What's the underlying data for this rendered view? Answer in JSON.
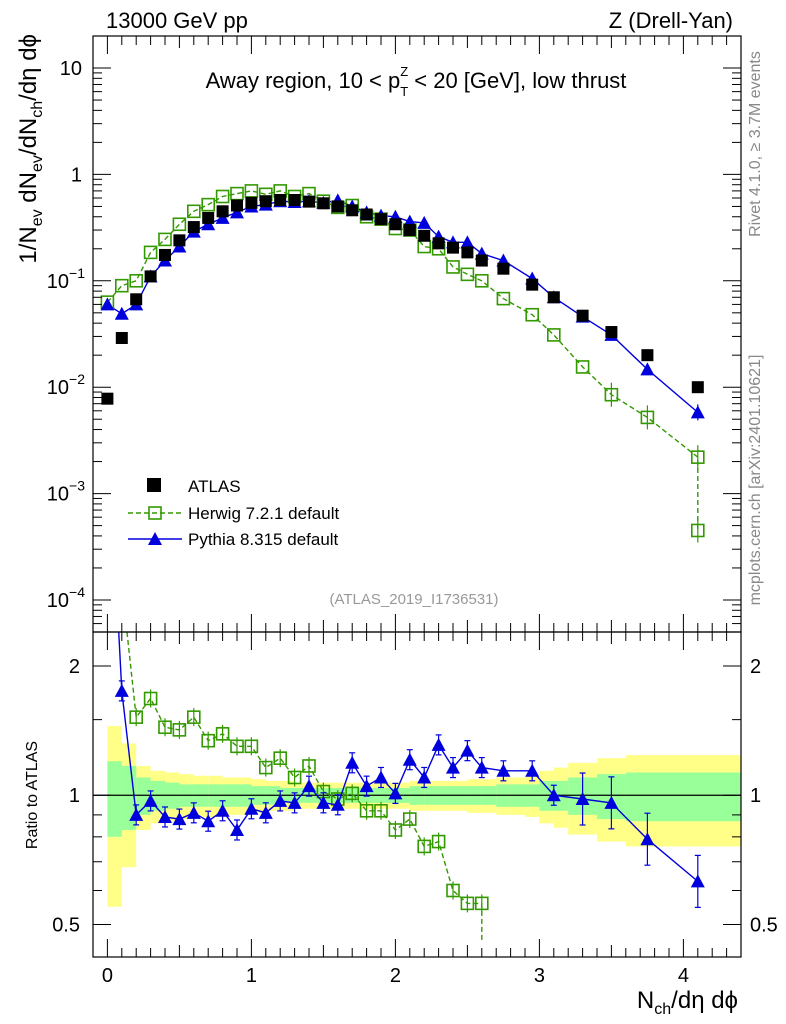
{
  "header": {
    "left": "13000 GeV pp",
    "right": "Z (Drell-Yan)"
  },
  "side_labels": {
    "rivet": "Rivet 4.1.0, ≥ 3.7M events",
    "mcplots": "mcplots.cern.ch [arXiv:2401.10621]"
  },
  "reference": "(ATLAS_2019_I1736531)",
  "colors": {
    "atlas": "#000000",
    "herwig": "#339900",
    "pythia": "#0000dd",
    "band_inner": "#99ff99",
    "band_outer": "#ffff88"
  },
  "chart_data": [
    {
      "type": "scatter",
      "title": "Away region, 10 < p_T^Z < 20 [GeV], low thrust",
      "title_parts": {
        "pre": "Away region, 10 < p",
        "sup": "Z",
        "sub": "T",
        "post": " < 20 [GeV], low thrust"
      },
      "ylabel": "1/N_ev dN_ev/dN_ch/dη dϕ",
      "ylabel_parts": [
        "1/N",
        "ev",
        " dN",
        "ev",
        "/dN",
        "ch",
        "/dη dϕ"
      ],
      "yscale": "log",
      "ylim": [
        5e-05,
        20
      ],
      "xlim": [
        -0.1,
        4.4
      ],
      "yticks": [
        {
          "v": 10,
          "label": "10"
        },
        {
          "v": 1,
          "label": "1"
        },
        {
          "v": 0.1,
          "label": "10",
          "exp": "−1"
        },
        {
          "v": 0.01,
          "label": "10",
          "exp": "−2"
        },
        {
          "v": 0.001,
          "label": "10",
          "exp": "−3"
        },
        {
          "v": 0.0001,
          "label": "10",
          "exp": "−4"
        }
      ],
      "legend_position": "lower-left",
      "series": [
        {
          "name": "ATLAS",
          "style": "data",
          "x": [
            0.0,
            0.1,
            0.2,
            0.3,
            0.4,
            0.5,
            0.6,
            0.7,
            0.8,
            0.9,
            1.0,
            1.1,
            1.2,
            1.3,
            1.4,
            1.5,
            1.6,
            1.7,
            1.8,
            1.9,
            2.0,
            2.1,
            2.2,
            2.3,
            2.4,
            2.5,
            2.6,
            2.75,
            2.95,
            3.1,
            3.3,
            3.5,
            3.75,
            4.1
          ],
          "values": [
            0.0078,
            0.029,
            0.067,
            0.11,
            0.175,
            0.24,
            0.32,
            0.39,
            0.45,
            0.51,
            0.54,
            0.56,
            0.575,
            0.575,
            0.555,
            0.535,
            0.5,
            0.46,
            0.42,
            0.38,
            0.34,
            0.3,
            0.265,
            0.225,
            0.205,
            0.185,
            0.155,
            0.13,
            0.092,
            0.07,
            0.047,
            0.033,
            0.02,
            0.01
          ]
        },
        {
          "name": "Herwig 7.2.1 default",
          "style": "open-square-dashed",
          "x": [
            0.0,
            0.1,
            0.2,
            0.3,
            0.4,
            0.5,
            0.6,
            0.7,
            0.8,
            0.9,
            1.0,
            1.1,
            1.2,
            1.3,
            1.4,
            1.5,
            1.6,
            1.7,
            1.8,
            1.9,
            2.0,
            2.1,
            2.2,
            2.3,
            2.4,
            2.5,
            2.6,
            2.75,
            2.95,
            3.1,
            3.3,
            3.5,
            3.75,
            4.1
          ],
          "values": [
            0.063,
            0.09,
            0.1,
            0.185,
            0.245,
            0.34,
            0.45,
            0.52,
            0.62,
            0.66,
            0.7,
            0.65,
            0.7,
            0.62,
            0.66,
            0.56,
            0.49,
            0.51,
            0.4,
            0.38,
            0.31,
            0.3,
            0.21,
            0.2,
            0.135,
            0.115,
            0.1,
            0.068,
            0.048,
            0.031,
            0.0155,
            0.0085,
            0.0052,
            0.0022
          ],
          "extra": {
            "x": 4.1,
            "value": 0.00045
          }
        },
        {
          "name": "Pythia 8.315 default",
          "style": "filled-triangle-solid",
          "x": [
            0.0,
            0.1,
            0.2,
            0.3,
            0.4,
            0.5,
            0.6,
            0.7,
            0.8,
            0.9,
            1.0,
            1.1,
            1.2,
            1.3,
            1.4,
            1.5,
            1.6,
            1.7,
            1.8,
            1.9,
            2.0,
            2.1,
            2.2,
            2.3,
            2.4,
            2.5,
            2.6,
            2.75,
            2.95,
            3.1,
            3.3,
            3.5,
            3.75,
            4.1
          ],
          "values": [
            0.06,
            0.049,
            0.06,
            0.11,
            0.155,
            0.21,
            0.29,
            0.34,
            0.39,
            0.44,
            0.5,
            0.52,
            0.56,
            0.55,
            0.56,
            0.54,
            0.57,
            0.5,
            0.44,
            0.41,
            0.4,
            0.36,
            0.35,
            0.26,
            0.23,
            0.23,
            0.18,
            0.155,
            0.105,
            0.07,
            0.046,
            0.031,
            0.0147,
            0.0058
          ]
        }
      ]
    },
    {
      "type": "line",
      "title": "",
      "xlabel": "N_ch/dη dϕ",
      "xlabel_parts": [
        "N",
        "ch",
        "/dη dϕ"
      ],
      "ylabel": "Ratio to ATLAS",
      "yscale": "log",
      "ylim": [
        0.42,
        2.4
      ],
      "xlim": [
        -0.1,
        4.4
      ],
      "xticks": [
        0,
        1,
        2,
        3,
        4
      ],
      "yticks": [
        {
          "v": 0.5,
          "label": "0.5"
        },
        {
          "v": 1,
          "label": "1"
        },
        {
          "v": 2,
          "label": "2"
        }
      ],
      "bands": {
        "edges": [
          0.0,
          0.1,
          0.2,
          0.3,
          0.4,
          0.5,
          0.6,
          0.7,
          0.8,
          0.9,
          1.0,
          1.1,
          1.2,
          1.3,
          1.4,
          1.5,
          1.6,
          1.7,
          1.8,
          1.9,
          2.0,
          2.1,
          2.2,
          2.3,
          2.4,
          2.5,
          2.6,
          2.7,
          2.8,
          2.9,
          3.0,
          3.1,
          3.2,
          3.4,
          3.6,
          4.4
        ],
        "inner": [
          0.2,
          0.17,
          0.1,
          0.08,
          0.07,
          0.06,
          0.06,
          0.06,
          0.06,
          0.06,
          0.05,
          0.05,
          0.04,
          0.04,
          0.04,
          0.04,
          0.04,
          0.04,
          0.04,
          0.04,
          0.04,
          0.05,
          0.05,
          0.05,
          0.05,
          0.05,
          0.05,
          0.06,
          0.06,
          0.06,
          0.08,
          0.08,
          0.1,
          0.12,
          0.13
        ],
        "outer": [
          0.45,
          0.32,
          0.17,
          0.14,
          0.13,
          0.12,
          0.11,
          0.11,
          0.1,
          0.1,
          0.09,
          0.08,
          0.08,
          0.07,
          0.07,
          0.07,
          0.07,
          0.07,
          0.07,
          0.07,
          0.07,
          0.08,
          0.08,
          0.08,
          0.08,
          0.09,
          0.09,
          0.1,
          0.1,
          0.11,
          0.14,
          0.16,
          0.19,
          0.22,
          0.24
        ]
      },
      "series": [
        {
          "name": "Herwig 7.2.1 default",
          "x": [
            0.1,
            0.2,
            0.3,
            0.4,
            0.5,
            0.6,
            0.7,
            0.8,
            0.9,
            1.0,
            1.1,
            1.2,
            1.3,
            1.4,
            1.5,
            1.6,
            1.7,
            1.8,
            1.9,
            2.0,
            2.1,
            2.2,
            2.3,
            2.4,
            2.5,
            2.6
          ],
          "values": [
            3.1,
            1.52,
            1.68,
            1.44,
            1.42,
            1.52,
            1.34,
            1.39,
            1.3,
            1.3,
            1.16,
            1.22,
            1.1,
            1.17,
            1.02,
            0.98,
            1.01,
            0.92,
            0.92,
            0.83,
            0.88,
            0.76,
            0.78,
            0.6,
            0.56,
            0.56
          ],
          "last": {
            "x": 2.6,
            "value": 0.46
          }
        },
        {
          "name": "Pythia 8.315 default",
          "x": [
            0.0,
            0.1,
            0.2,
            0.3,
            0.4,
            0.5,
            0.6,
            0.7,
            0.8,
            0.9,
            1.0,
            1.1,
            1.2,
            1.3,
            1.4,
            1.5,
            1.6,
            1.7,
            1.8,
            1.9,
            2.0,
            2.1,
            2.2,
            2.3,
            2.4,
            2.5,
            2.6,
            2.75,
            2.95,
            3.1,
            3.3,
            3.5,
            3.75,
            4.1
          ],
          "values": [
            7.7,
            1.75,
            0.9,
            0.97,
            0.89,
            0.88,
            0.91,
            0.87,
            0.92,
            0.83,
            0.93,
            0.91,
            0.97,
            0.96,
            1.05,
            0.96,
            0.95,
            1.19,
            1.05,
            1.1,
            1.01,
            1.21,
            1.1,
            1.31,
            1.16,
            1.27,
            1.16,
            1.14,
            1.14,
            1.0,
            0.98,
            0.96,
            0.79,
            0.63
          ]
        }
      ]
    }
  ]
}
